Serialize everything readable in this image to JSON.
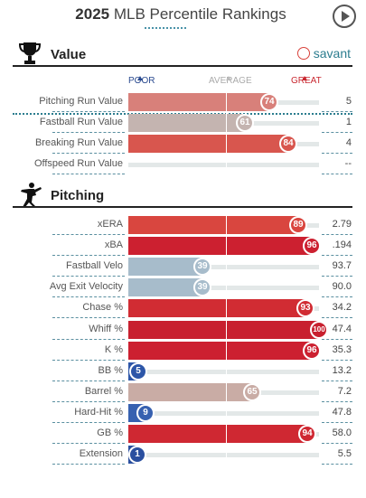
{
  "header": {
    "year": "2025",
    "title_rest": " MLB Percentile Rankings"
  },
  "value_section": {
    "title": "Value",
    "brand": "savant",
    "scale": {
      "poor": "POOR",
      "average": "AVERAGE",
      "great": "GREAT"
    },
    "rows": [
      {
        "label": "Pitching Run Value",
        "percentile": 74,
        "value": "5",
        "color": "#d8807a"
      },
      {
        "label": "Fastball Run Value",
        "percentile": 61,
        "value": "1",
        "color": "#c4b4b0"
      },
      {
        "label": "Breaking Run Value",
        "percentile": 84,
        "value": "4",
        "color": "#d8564e"
      },
      {
        "label": "Offspeed Run Value",
        "percentile": null,
        "value": "--",
        "color": "#e3e8e8"
      }
    ]
  },
  "pitching_section": {
    "title": "Pitching",
    "rows": [
      {
        "label": "xERA",
        "percentile": 89,
        "value": "2.79",
        "color": "#d9463f"
      },
      {
        "label": "xBA",
        "percentile": 96,
        "value": ".194",
        "color": "#cc2030"
      },
      {
        "label": "Fastball Velo",
        "percentile": 39,
        "value": "93.7",
        "color": "#a7bccb"
      },
      {
        "label": "Avg Exit Velocity",
        "percentile": 39,
        "value": "90.0",
        "color": "#a7bccb"
      },
      {
        "label": "Chase %",
        "percentile": 93,
        "value": "34.2",
        "color": "#d12c33"
      },
      {
        "label": "Whiff %",
        "percentile": 100,
        "value": "47.4",
        "color": "#c8202f"
      },
      {
        "label": "K %",
        "percentile": 96,
        "value": "35.3",
        "color": "#cc2030"
      },
      {
        "label": "BB %",
        "percentile": 5,
        "value": "13.2",
        "color": "#2d56a8"
      },
      {
        "label": "Barrel %",
        "percentile": 65,
        "value": "7.2",
        "color": "#c9aca5"
      },
      {
        "label": "Hard-Hit %",
        "percentile": 9,
        "value": "47.8",
        "color": "#3761b0"
      },
      {
        "label": "GB %",
        "percentile": 94,
        "value": "58.0",
        "color": "#cf2832"
      },
      {
        "label": "Extension",
        "percentile": 1,
        "value": "5.5",
        "color": "#2a4f9f"
      }
    ]
  }
}
